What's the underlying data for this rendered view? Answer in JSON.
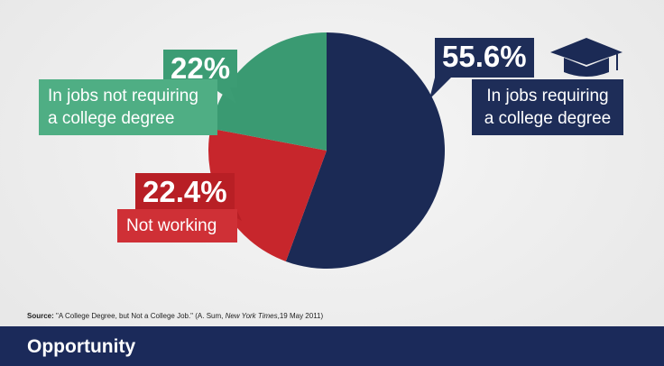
{
  "chart_data": {
    "type": "pie",
    "categories": [
      "In jobs requiring a college degree",
      "Not working",
      "In jobs not requiring a college degree"
    ],
    "values": [
      55.6,
      22.4,
      22
    ],
    "value_labels": [
      "55.6%",
      "22.4%",
      "22%"
    ],
    "colors": [
      "#1b2a55",
      "#c7262c",
      "#3a9a72"
    ],
    "source": {
      "label": "Source:",
      "text": "\"A College Degree, but Not a College Job.\"  (A. Sum, ",
      "italic": "New York Times",
      "end": ",19 May 2011)"
    }
  },
  "footer": {
    "title": "Opportunity"
  }
}
